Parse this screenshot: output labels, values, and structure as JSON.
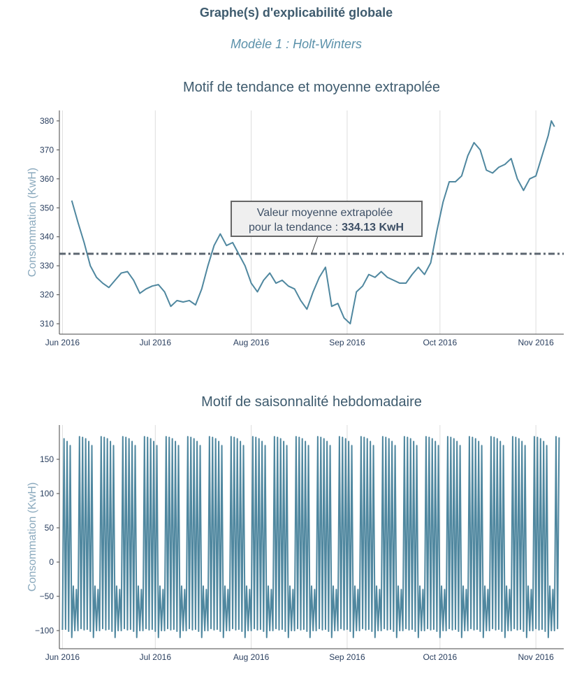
{
  "header": {
    "title": "Graphe(s) d'explicabilité globale",
    "subtitle": "Modèle 1 : Holt-Winters"
  },
  "chart_data": [
    {
      "type": "line",
      "title": "Motif de tendance et moyenne extrapolée",
      "y_label": "Consommation (KwH)",
      "color": "#4f879f",
      "xlim": [
        "2016-05-31",
        "2016-11-10"
      ],
      "ylim": [
        306.4,
        383.6
      ],
      "xticks": [
        {
          "value": "2016-06-01",
          "label": "Jun 2016"
        },
        {
          "value": "2016-07-01",
          "label": "Jul 2016"
        },
        {
          "value": "2016-08-01",
          "label": "Aug 2016"
        },
        {
          "value": "2016-09-01",
          "label": "Sep 2016"
        },
        {
          "value": "2016-10-01",
          "label": "Oct 2016"
        },
        {
          "value": "2016-11-01",
          "label": "Nov 2016"
        }
      ],
      "yticks": [
        310,
        320,
        330,
        340,
        350,
        360,
        370,
        380
      ],
      "grid": true,
      "mean_line": 334.13,
      "annotation": {
        "line1": "Valeur moyenne extrapolée",
        "line2": "pour la tendance :",
        "value_label": "334.13 KwH"
      },
      "x": [
        "2016-06-04",
        "2016-06-06",
        "2016-06-08",
        "2016-06-10",
        "2016-06-12",
        "2016-06-14",
        "2016-06-16",
        "2016-06-18",
        "2016-06-20",
        "2016-06-22",
        "2016-06-24",
        "2016-06-26",
        "2016-06-28",
        "2016-06-30",
        "2016-07-02",
        "2016-07-04",
        "2016-07-06",
        "2016-07-08",
        "2016-07-10",
        "2016-07-12",
        "2016-07-14",
        "2016-07-16",
        "2016-07-18",
        "2016-07-20",
        "2016-07-22",
        "2016-07-24",
        "2016-07-26",
        "2016-07-28",
        "2016-07-30",
        "2016-08-01",
        "2016-08-03",
        "2016-08-05",
        "2016-08-07",
        "2016-08-09",
        "2016-08-11",
        "2016-08-13",
        "2016-08-15",
        "2016-08-17",
        "2016-08-19",
        "2016-08-21",
        "2016-08-23",
        "2016-08-25",
        "2016-08-27",
        "2016-08-29",
        "2016-08-31",
        "2016-09-02",
        "2016-09-04",
        "2016-09-06",
        "2016-09-08",
        "2016-09-10",
        "2016-09-12",
        "2016-09-14",
        "2016-09-16",
        "2016-09-18",
        "2016-09-20",
        "2016-09-22",
        "2016-09-24",
        "2016-09-26",
        "2016-09-28",
        "2016-09-30",
        "2016-10-02",
        "2016-10-04",
        "2016-10-06",
        "2016-10-08",
        "2016-10-10",
        "2016-10-12",
        "2016-10-14",
        "2016-10-16",
        "2016-10-18",
        "2016-10-20",
        "2016-10-22",
        "2016-10-24",
        "2016-10-26",
        "2016-10-28",
        "2016-10-30",
        "2016-11-01",
        "2016-11-03",
        "2016-11-05",
        "2016-11-06",
        "2016-11-07"
      ],
      "values": [
        352.5,
        345,
        338,
        330,
        326,
        324,
        322.5,
        325,
        327.5,
        328,
        325,
        320.5,
        322,
        323,
        323.5,
        321,
        316,
        318,
        317.5,
        318,
        316.5,
        322,
        330,
        337,
        341,
        337,
        338,
        334,
        330,
        324,
        321,
        325,
        327.5,
        324,
        325,
        323,
        322,
        318,
        315,
        321,
        326,
        329.5,
        316,
        317,
        312,
        310,
        321,
        323,
        327,
        326,
        328,
        326,
        325,
        324,
        324,
        327,
        329.5,
        327,
        331,
        342,
        352,
        359,
        359,
        361,
        368,
        372.5,
        370,
        363,
        362,
        364,
        365,
        367,
        360,
        356,
        360,
        361,
        368,
        375,
        380,
        378
      ]
    },
    {
      "type": "line",
      "title": "Motif de saisonnalité hebdomadaire",
      "y_label": "Consommation (KwH)",
      "color": "#4f879f",
      "xlim": [
        "2016-05-31",
        "2016-11-10"
      ],
      "ylim": [
        -126.5,
        200
      ],
      "xticks": [
        {
          "value": "2016-06-01",
          "label": "Jun 2016"
        },
        {
          "value": "2016-07-01",
          "label": "Jul 2016"
        },
        {
          "value": "2016-08-01",
          "label": "Aug 2016"
        },
        {
          "value": "2016-09-01",
          "label": "Sep 2016"
        },
        {
          "value": "2016-10-01",
          "label": "Oct 2016"
        },
        {
          "value": "2016-11-01",
          "label": "Nov 2016"
        }
      ],
      "yticks": [
        {
          "value": -100,
          "label": "−100"
        },
        {
          "value": -50,
          "label": "−50"
        },
        0,
        50,
        100,
        150
      ],
      "grid": true,
      "x": [
        "2016-06-01T00:00",
        "2016-06-01T12:00",
        "2016-06-02T00:00",
        "2016-06-02T12:00",
        "2016-06-03T00:00",
        "2016-06-03T12:00",
        "2016-06-04T00:00",
        "2016-06-04T12:00",
        "2016-06-05T00:00",
        "2016-06-05T12:00",
        "2016-06-06T00:00",
        "2016-06-06T12:00",
        "2016-06-07T00:00",
        "2016-06-07T12:00",
        "2016-06-08T00:00",
        "2016-06-08T12:00",
        "2016-06-09T00:00",
        "2016-06-09T12:00",
        "2016-06-10T00:00",
        "2016-06-10T12:00",
        "2016-06-11T00:00",
        "2016-06-11T12:00",
        "2016-06-12T00:00",
        "2016-06-12T12:00",
        "2016-06-13T00:00",
        "2016-06-13T12:00",
        "2016-06-14T00:00",
        "2016-06-14T12:00",
        "2016-06-15T00:00",
        "2016-06-15T12:00",
        "2016-06-16T00:00",
        "2016-06-16T12:00",
        "2016-06-17T00:00",
        "2016-06-17T12:00",
        "2016-06-18T00:00",
        "2016-06-18T12:00",
        "2016-06-19T00:00",
        "2016-06-19T12:00",
        "2016-06-20T00:00",
        "2016-06-20T12:00",
        "2016-06-21T00:00",
        "2016-06-21T12:00",
        "2016-06-22T00:00",
        "2016-06-22T12:00",
        "2016-06-23T00:00",
        "2016-06-23T12:00",
        "2016-06-24T00:00",
        "2016-06-24T12:00",
        "2016-06-25T00:00",
        "2016-06-25T12:00",
        "2016-06-26T00:00",
        "2016-06-26T12:00",
        "2016-06-27T00:00",
        "2016-06-27T12:00",
        "2016-06-28T00:00",
        "2016-06-28T12:00",
        "2016-06-29T00:00",
        "2016-06-29T12:00",
        "2016-06-30T00:00",
        "2016-06-30T12:00",
        "2016-07-01T00:00",
        "2016-07-01T12:00",
        "2016-07-02T00:00",
        "2016-07-02T12:00",
        "2016-07-03T00:00",
        "2016-07-03T12:00",
        "2016-07-04T00:00",
        "2016-07-04T12:00",
        "2016-07-05T00:00",
        "2016-07-05T12:00",
        "2016-07-06T00:00",
        "2016-07-06T12:00",
        "2016-07-07T00:00",
        "2016-07-07T12:00",
        "2016-07-08T00:00",
        "2016-07-08T12:00",
        "2016-07-09T00:00",
        "2016-07-09T12:00",
        "2016-07-10T00:00",
        "2016-07-10T12:00",
        "2016-07-11T00:00",
        "2016-07-11T12:00",
        "2016-07-12T00:00",
        "2016-07-12T12:00",
        "2016-07-13T00:00",
        "2016-07-13T12:00",
        "2016-07-14T00:00",
        "2016-07-14T12:00",
        "2016-07-15T00:00",
        "2016-07-15T12:00",
        "2016-07-16T00:00",
        "2016-07-16T12:00",
        "2016-07-17T00:00",
        "2016-07-17T12:00",
        "2016-07-18T00:00",
        "2016-07-18T12:00",
        "2016-07-19T00:00",
        "2016-07-19T12:00",
        "2016-07-20T00:00",
        "2016-07-20T12:00",
        "2016-07-21T00:00",
        "2016-07-21T12:00",
        "2016-07-22T00:00",
        "2016-07-22T12:00",
        "2016-07-23T00:00",
        "2016-07-23T12:00",
        "2016-07-24T00:00",
        "2016-07-24T12:00",
        "2016-07-25T00:00",
        "2016-07-25T12:00",
        "2016-07-26T00:00",
        "2016-07-26T12:00",
        "2016-07-27T00:00",
        "2016-07-27T12:00",
        "2016-07-28T00:00",
        "2016-07-28T12:00",
        "2016-07-29T00:00",
        "2016-07-29T12:00",
        "2016-07-30T00:00",
        "2016-07-30T12:00",
        "2016-07-31T00:00",
        "2016-07-31T12:00",
        "2016-08-01T00:00",
        "2016-08-01T12:00",
        "2016-08-02T00:00",
        "2016-08-02T12:00",
        "2016-08-03T00:00",
        "2016-08-03T12:00",
        "2016-08-04T00:00",
        "2016-08-04T12:00",
        "2016-08-05T00:00",
        "2016-08-05T12:00",
        "2016-08-06T00:00",
        "2016-08-06T12:00",
        "2016-08-07T00:00",
        "2016-08-07T12:00",
        "2016-08-08T00:00",
        "2016-08-08T12:00",
        "2016-08-09T00:00",
        "2016-08-09T12:00",
        "2016-08-10T00:00",
        "2016-08-10T12:00",
        "2016-08-11T00:00",
        "2016-08-11T12:00",
        "2016-08-12T00:00",
        "2016-08-12T12:00",
        "2016-08-13T00:00",
        "2016-08-13T12:00",
        "2016-08-14T00:00",
        "2016-08-14T12:00",
        "2016-08-15T00:00",
        "2016-08-15T12:00",
        "2016-08-16T00:00",
        "2016-08-16T12:00",
        "2016-08-17T00:00",
        "2016-08-17T12:00",
        "2016-08-18T00:00",
        "2016-08-18T12:00",
        "2016-08-19T00:00",
        "2016-08-19T12:00",
        "2016-08-20T00:00",
        "2016-08-20T12:00",
        "2016-08-21T00:00",
        "2016-08-21T12:00",
        "2016-08-22T00:00",
        "2016-08-22T12:00",
        "2016-08-23T00:00",
        "2016-08-23T12:00",
        "2016-08-24T00:00",
        "2016-08-24T12:00",
        "2016-08-25T00:00",
        "2016-08-25T12:00",
        "2016-08-26T00:00",
        "2016-08-26T12:00",
        "2016-08-27T00:00",
        "2016-08-27T12:00",
        "2016-08-28T00:00",
        "2016-08-28T12:00",
        "2016-08-29T00:00",
        "2016-08-29T12:00",
        "2016-08-30T00:00",
        "2016-08-30T12:00",
        "2016-08-31T00:00",
        "2016-08-31T12:00",
        "2016-09-01T00:00",
        "2016-09-01T12:00",
        "2016-09-02T00:00",
        "2016-09-02T12:00",
        "2016-09-03T00:00",
        "2016-09-03T12:00",
        "2016-09-04T00:00",
        "2016-09-04T12:00",
        "2016-09-05T00:00",
        "2016-09-05T12:00",
        "2016-09-06T00:00",
        "2016-09-06T12:00",
        "2016-09-07T00:00",
        "2016-09-07T12:00",
        "2016-09-08T00:00",
        "2016-09-08T12:00",
        "2016-09-09T00:00",
        "2016-09-09T12:00",
        "2016-09-10T00:00",
        "2016-09-10T12:00",
        "2016-09-11T00:00",
        "2016-09-11T12:00",
        "2016-09-12T00:00",
        "2016-09-12T12:00",
        "2016-09-13T00:00",
        "2016-09-13T12:00",
        "2016-09-14T00:00",
        "2016-09-14T12:00",
        "2016-09-15T00:00",
        "2016-09-15T12:00",
        "2016-09-16T00:00",
        "2016-09-16T12:00",
        "2016-09-17T00:00",
        "2016-09-17T12:00",
        "2016-09-18T00:00",
        "2016-09-18T12:00",
        "2016-09-19T00:00",
        "2016-09-19T12:00",
        "2016-09-20T00:00",
        "2016-09-20T12:00",
        "2016-09-21T00:00",
        "2016-09-21T12:00",
        "2016-09-22T00:00",
        "2016-09-22T12:00",
        "2016-09-23T00:00",
        "2016-09-23T12:00",
        "2016-09-24T00:00",
        "2016-09-24T12:00",
        "2016-09-25T00:00",
        "2016-09-25T12:00",
        "2016-09-26T00:00",
        "2016-09-26T12:00",
        "2016-09-27T00:00",
        "2016-09-27T12:00",
        "2016-09-28T00:00",
        "2016-09-28T12:00",
        "2016-09-29T00:00",
        "2016-09-29T12:00",
        "2016-09-30T00:00",
        "2016-09-30T12:00",
        "2016-10-01T00:00",
        "2016-10-01T12:00",
        "2016-10-02T00:00",
        "2016-10-02T12:00",
        "2016-10-03T00:00",
        "2016-10-03T12:00",
        "2016-10-04T00:00",
        "2016-10-04T12:00",
        "2016-10-05T00:00",
        "2016-10-05T12:00",
        "2016-10-06T00:00",
        "2016-10-06T12:00",
        "2016-10-07T00:00",
        "2016-10-07T12:00",
        "2016-10-08T00:00",
        "2016-10-08T12:00",
        "2016-10-09T00:00",
        "2016-10-09T12:00",
        "2016-10-10T00:00",
        "2016-10-10T12:00",
        "2016-10-11T00:00",
        "2016-10-11T12:00",
        "2016-10-12T00:00",
        "2016-10-12T12:00",
        "2016-10-13T00:00",
        "2016-10-13T12:00",
        "2016-10-14T00:00",
        "2016-10-14T12:00",
        "2016-10-15T00:00",
        "2016-10-15T12:00",
        "2016-10-16T00:00",
        "2016-10-16T12:00",
        "2016-10-17T00:00",
        "2016-10-17T12:00",
        "2016-10-18T00:00",
        "2016-10-18T12:00",
        "2016-10-19T00:00",
        "2016-10-19T12:00",
        "2016-10-20T00:00",
        "2016-10-20T12:00",
        "2016-10-21T00:00",
        "2016-10-21T12:00",
        "2016-10-22T00:00",
        "2016-10-22T12:00",
        "2016-10-23T00:00",
        "2016-10-23T12:00",
        "2016-10-24T00:00",
        "2016-10-24T12:00",
        "2016-10-25T00:00",
        "2016-10-25T12:00",
        "2016-10-26T00:00",
        "2016-10-26T12:00",
        "2016-10-27T00:00",
        "2016-10-27T12:00",
        "2016-10-28T00:00",
        "2016-10-28T12:00",
        "2016-10-29T00:00",
        "2016-10-29T12:00",
        "2016-10-30T00:00",
        "2016-10-30T12:00",
        "2016-10-31T00:00",
        "2016-10-31T12:00",
        "2016-11-01T00:00",
        "2016-11-01T12:00",
        "2016-11-02T00:00",
        "2016-11-02T12:00",
        "2016-11-03T00:00",
        "2016-11-03T12:00",
        "2016-11-04T00:00",
        "2016-11-04T12:00",
        "2016-11-05T00:00",
        "2016-11-05T12:00",
        "2016-11-06T00:00",
        "2016-11-06T12:00",
        "2016-11-07T00:00",
        "2016-11-07T12:00",
        "2016-11-08T00:00",
        "2016-11-08T12:00"
      ],
      "values": [
        -99,
        180,
        -98,
        176,
        -101,
        170,
        -110,
        -35,
        -100,
        -40,
        -100,
        183,
        -97,
        182,
        -99,
        180,
        -98,
        176,
        -101,
        170,
        -110,
        -35,
        -100,
        -40,
        -100,
        183,
        -97,
        182,
        -99,
        180,
        -98,
        176,
        -101,
        170,
        -110,
        -35,
        -100,
        -40,
        -100,
        183,
        -97,
        182,
        -99,
        180,
        -98,
        176,
        -101,
        170,
        -110,
        -35,
        -100,
        -40,
        -100,
        183,
        -97,
        182,
        -99,
        180,
        -98,
        176,
        -101,
        170,
        -110,
        -35,
        -100,
        -40,
        -100,
        183,
        -97,
        182,
        -99,
        180,
        -98,
        176,
        -101,
        170,
        -110,
        -35,
        -100,
        -40,
        -100,
        183,
        -97,
        182,
        -99,
        180,
        -98,
        176,
        -101,
        170,
        -110,
        -35,
        -100,
        -40,
        -100,
        183,
        -97,
        182,
        -99,
        180,
        -98,
        176,
        -101,
        170,
        -110,
        -35,
        -100,
        -40,
        -100,
        183,
        -97,
        182,
        -99,
        180,
        -98,
        176,
        -101,
        170,
        -110,
        -35,
        -100,
        -40,
        -100,
        183,
        -97,
        182,
        -99,
        180,
        -98,
        176,
        -101,
        170,
        -110,
        -35,
        -100,
        -40,
        -100,
        183,
        -97,
        182,
        -99,
        180,
        -98,
        176,
        -101,
        170,
        -110,
        -35,
        -100,
        -40,
        -100,
        183,
        -97,
        182,
        -99,
        180,
        -98,
        176,
        -101,
        170,
        -110,
        -35,
        -100,
        -40,
        -100,
        183,
        -97,
        182,
        -99,
        180,
        -98,
        176,
        -101,
        170,
        -110,
        -35,
        -100,
        -40,
        -100,
        183,
        -97,
        182,
        -99,
        180,
        -98,
        176,
        -101,
        170,
        -110,
        -35,
        -100,
        -40,
        -100,
        183,
        -97,
        182,
        -99,
        180,
        -98,
        176,
        -101,
        170,
        -110,
        -35,
        -100,
        -40,
        -100,
        183,
        -97,
        182,
        -99,
        180,
        -98,
        176,
        -101,
        170,
        -110,
        -35,
        -100,
        -40,
        -100,
        183,
        -97,
        182,
        -99,
        180,
        -98,
        176,
        -101,
        170,
        -110,
        -35,
        -100,
        -40,
        -100,
        183,
        -97,
        182,
        -99,
        180,
        -98,
        176,
        -101,
        170,
        -110,
        -35,
        -100,
        -40,
        -100,
        183,
        -97,
        182,
        -99,
        180,
        -98,
        176,
        -101,
        170,
        -110,
        -35,
        -100,
        -40,
        -100,
        183,
        -97,
        182,
        -99,
        180,
        -98,
        176,
        -101,
        170,
        -110,
        -35,
        -100,
        -40,
        -100,
        183,
        -97,
        182,
        -99,
        180,
        -98,
        176,
        -101,
        170,
        -110,
        -35,
        -100,
        -40,
        -100,
        183,
        -97,
        182,
        -99,
        180,
        -98,
        176,
        -101,
        170,
        -110,
        -35,
        -100,
        -40,
        -100,
        183,
        -97,
        182,
        -99,
        180,
        -98,
        176,
        -101,
        170,
        -110,
        -35,
        -100,
        -40,
        -100,
        183,
        -97,
        182
      ]
    }
  ]
}
